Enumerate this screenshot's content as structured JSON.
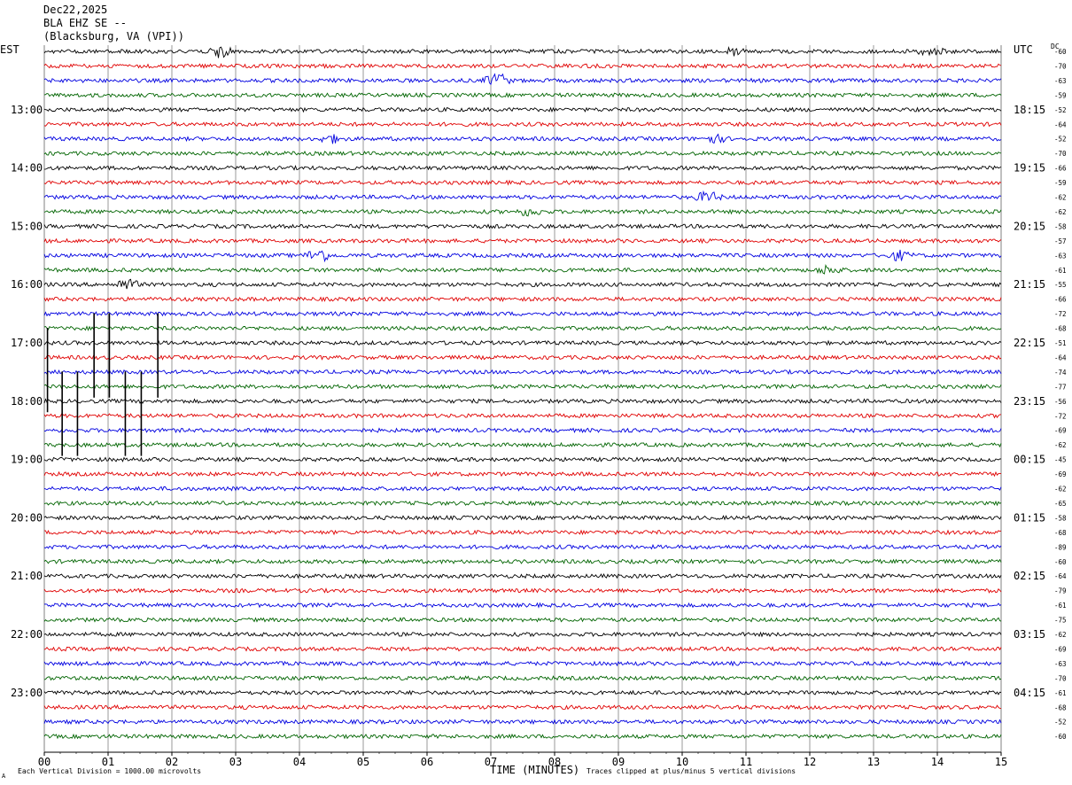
{
  "header": {
    "date": "Dec22,2025",
    "station": "BLA EHZ SE --",
    "location": "(Blacksburg, VA (VPI))"
  },
  "tz_left": "EST",
  "tz_right": "UTC",
  "dc_label": "DC",
  "colors": {
    "trace_cycle": [
      "#000000",
      "#e00000",
      "#0000e0",
      "#006400"
    ],
    "grid": "#808080"
  },
  "chart_data": {
    "type": "line",
    "description_type": "helicorder",
    "rows": 48,
    "row_minutes": 15,
    "x_range_minutes": [
      0,
      15
    ],
    "x_ticks": [
      "00",
      "01",
      "02",
      "03",
      "04",
      "05",
      "06",
      "07",
      "08",
      "09",
      "10",
      "11",
      "12",
      "13",
      "14",
      "15"
    ],
    "xlabel": "TIME (MINUTES)",
    "left_time_labels": [
      {
        "row": 4,
        "label": "13:00"
      },
      {
        "row": 8,
        "label": "14:00"
      },
      {
        "row": 12,
        "label": "15:00"
      },
      {
        "row": 16,
        "label": "16:00"
      },
      {
        "row": 20,
        "label": "17:00"
      },
      {
        "row": 24,
        "label": "18:00"
      },
      {
        "row": 28,
        "label": "19:00"
      },
      {
        "row": 32,
        "label": "20:00"
      },
      {
        "row": 36,
        "label": "21:00"
      },
      {
        "row": 40,
        "label": "22:00"
      },
      {
        "row": 44,
        "label": "23:00"
      }
    ],
    "right_time_labels": [
      {
        "row": 4,
        "label": "18:15"
      },
      {
        "row": 8,
        "label": "19:15"
      },
      {
        "row": 12,
        "label": "20:15"
      },
      {
        "row": 16,
        "label": "21:15"
      },
      {
        "row": 20,
        "label": "22:15"
      },
      {
        "row": 24,
        "label": "23:15"
      },
      {
        "row": 28,
        "label": "00:15"
      },
      {
        "row": 32,
        "label": "01:15"
      },
      {
        "row": 36,
        "label": "02:15"
      },
      {
        "row": 40,
        "label": "03:15"
      },
      {
        "row": 44,
        "label": "04:15"
      }
    ],
    "dc_offsets": [
      "-60",
      "-70",
      "-63",
      "-59",
      "-52",
      "-64",
      "-52",
      "-70",
      "-66",
      "-59",
      "-62",
      "-62",
      "-58",
      "-57",
      "-63",
      "-61",
      "-55",
      "-66",
      "-72",
      "-68",
      "-51",
      "-64",
      "-74",
      "-77",
      "-56",
      "-72",
      "-69",
      "-62",
      "-45",
      "-69",
      "-62",
      "-65",
      "-58",
      "-68",
      "-89",
      "-60",
      "-64",
      "-79",
      "-61",
      "-75",
      "-62",
      "-69",
      "-63",
      "-70",
      "-61",
      "-68",
      "-52",
      "-60"
    ],
    "events": [
      {
        "row": 0,
        "minute": 2.75,
        "amplitude": 0.6
      },
      {
        "row": 0,
        "minute": 10.8,
        "amplitude": 0.4
      },
      {
        "row": 0,
        "minute": 13.9,
        "amplitude": 0.5
      },
      {
        "row": 2,
        "minute": 7.1,
        "amplitude": 0.8
      },
      {
        "row": 6,
        "minute": 4.5,
        "amplitude": 0.4
      },
      {
        "row": 6,
        "minute": 10.5,
        "amplitude": 0.4
      },
      {
        "row": 10,
        "minute": 10.4,
        "amplitude": 0.6
      },
      {
        "row": 11,
        "minute": 7.6,
        "amplitude": 0.4
      },
      {
        "row": 14,
        "minute": 4.3,
        "amplitude": 0.8
      },
      {
        "row": 14,
        "minute": 13.4,
        "amplitude": 0.5
      },
      {
        "row": 15,
        "minute": 12.3,
        "amplitude": 0.5
      },
      {
        "row": 16,
        "minute": 1.3,
        "amplitude": 0.6
      }
    ],
    "clipped_spikes": [
      {
        "minute": 0.05,
        "row_top": 20,
        "row_bottom": 25
      },
      {
        "minute": 0.28,
        "row_top": 23,
        "row_bottom": 28
      },
      {
        "minute": 0.52,
        "row_top": 23,
        "row_bottom": 28
      },
      {
        "minute": 0.78,
        "row_top": 19,
        "row_bottom": 24
      },
      {
        "minute": 1.02,
        "row_top": 19,
        "row_bottom": 24
      },
      {
        "minute": 1.27,
        "row_top": 23,
        "row_bottom": 28
      },
      {
        "minute": 1.52,
        "row_top": 23,
        "row_bottom": 28
      },
      {
        "minute": 1.78,
        "row_top": 19,
        "row_bottom": 24
      }
    ]
  },
  "footer": {
    "scale_note": "Each Vertical Division = 1000.00 microvolts",
    "clip_note": "Traces clipped at plus/minus 5 vertical divisions",
    "corner": "A"
  }
}
